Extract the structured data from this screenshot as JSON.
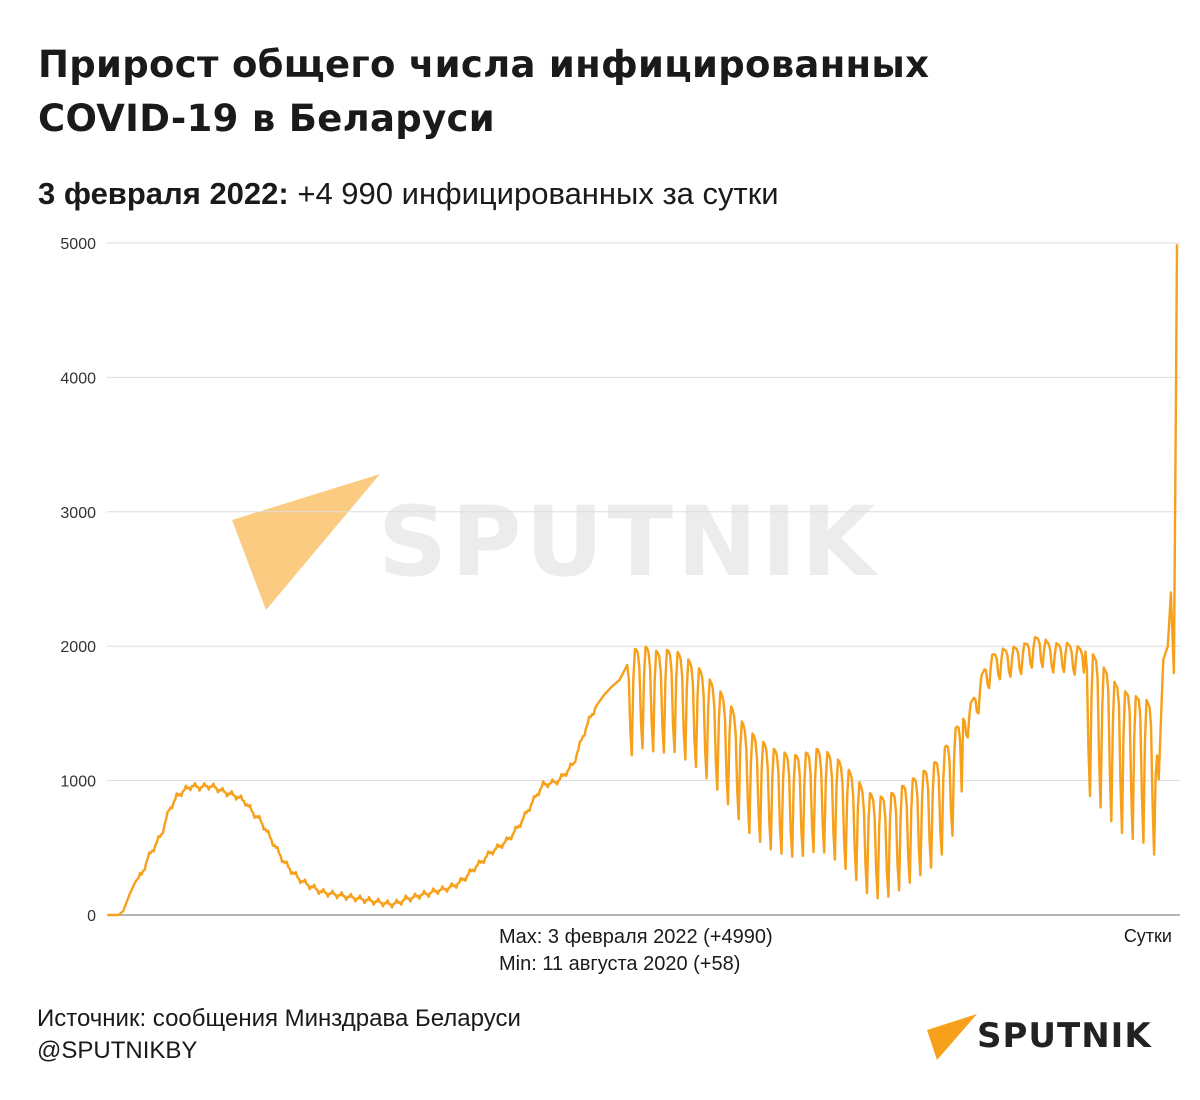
{
  "header": {
    "title_line1": "Прирост общего числа инфицированных",
    "title_line2": "COVID-19 в Беларуси",
    "subtitle_date": "3 февраля 2022:",
    "subtitle_text": " +4 990 инфицированных за сутки"
  },
  "annotation": {
    "max": "Max: 3 февраля 2022 (+4990)",
    "min": "Min: 11 августа 2020 (+58)"
  },
  "x_unit": "Сутки",
  "footer": {
    "source": "Источник: сообщения Минздрава Беларуси",
    "handle": "@SPUTNIKBY"
  },
  "logo": {
    "text": "SPUTNIK",
    "icon": "sputnik-triangle-icon"
  },
  "watermark": {
    "text": "SPUTNIK"
  },
  "colors": {
    "line": "#f7a01b",
    "grid": "#dddddd",
    "axis": "#888888"
  },
  "chart_data": {
    "type": "line",
    "title": "Прирост общего числа инфицированных COVID-19 в Беларуси",
    "xlabel": "Сутки",
    "ylabel": "",
    "ylim": [
      0,
      5000
    ],
    "yticks": [
      0,
      1000,
      2000,
      3000,
      4000,
      5000
    ],
    "grid": true,
    "legend": "none",
    "x_count": 700,
    "keypoints": [
      [
        0,
        0
      ],
      [
        7,
        0
      ],
      [
        10,
        30
      ],
      [
        14,
        150
      ],
      [
        18,
        250
      ],
      [
        22,
        300
      ],
      [
        26,
        420
      ],
      [
        30,
        500
      ],
      [
        35,
        600
      ],
      [
        40,
        780
      ],
      [
        45,
        880
      ],
      [
        50,
        930
      ],
      [
        55,
        960
      ],
      [
        60,
        950
      ],
      [
        65,
        960
      ],
      [
        70,
        950
      ],
      [
        75,
        920
      ],
      [
        80,
        900
      ],
      [
        85,
        880
      ],
      [
        90,
        840
      ],
      [
        95,
        760
      ],
      [
        100,
        700
      ],
      [
        105,
        600
      ],
      [
        110,
        500
      ],
      [
        115,
        400
      ],
      [
        120,
        330
      ],
      [
        125,
        270
      ],
      [
        130,
        230
      ],
      [
        135,
        200
      ],
      [
        140,
        170
      ],
      [
        145,
        160
      ],
      [
        150,
        150
      ],
      [
        155,
        140
      ],
      [
        160,
        130
      ],
      [
        165,
        120
      ],
      [
        170,
        110
      ],
      [
        175,
        100
      ],
      [
        180,
        90
      ],
      [
        185,
        80
      ],
      [
        190,
        90
      ],
      [
        195,
        120
      ],
      [
        200,
        130
      ],
      [
        205,
        150
      ],
      [
        210,
        160
      ],
      [
        215,
        180
      ],
      [
        220,
        190
      ],
      [
        225,
        210
      ],
      [
        230,
        240
      ],
      [
        235,
        290
      ],
      [
        240,
        350
      ],
      [
        245,
        400
      ],
      [
        250,
        460
      ],
      [
        255,
        500
      ],
      [
        260,
        540
      ],
      [
        265,
        600
      ],
      [
        270,
        680
      ],
      [
        275,
        780
      ],
      [
        280,
        880
      ],
      [
        285,
        970
      ],
      [
        290,
        980
      ],
      [
        295,
        1000
      ],
      [
        300,
        1060
      ],
      [
        305,
        1130
      ],
      [
        310,
        1300
      ],
      [
        315,
        1450
      ],
      [
        320,
        1560
      ],
      [
        325,
        1640
      ],
      [
        330,
        1700
      ],
      [
        335,
        1750
      ],
      [
        340,
        1860
      ],
      [
        345,
        1940
      ],
      [
        350,
        1960
      ],
      [
        355,
        1950
      ],
      [
        360,
        1920
      ],
      [
        365,
        1930
      ],
      [
        370,
        1940
      ],
      [
        375,
        1900
      ],
      [
        380,
        1860
      ],
      [
        385,
        1820
      ],
      [
        390,
        1760
      ],
      [
        395,
        1700
      ],
      [
        400,
        1640
      ],
      [
        405,
        1560
      ],
      [
        410,
        1480
      ],
      [
        415,
        1400
      ],
      [
        420,
        1330
      ],
      [
        425,
        1280
      ],
      [
        430,
        1240
      ],
      [
        435,
        1200
      ],
      [
        440,
        1180
      ],
      [
        445,
        1160
      ],
      [
        450,
        1150
      ],
      [
        455,
        1160
      ],
      [
        460,
        1180
      ],
      [
        465,
        1200
      ],
      [
        470,
        1180
      ],
      [
        475,
        1140
      ],
      [
        480,
        1100
      ],
      [
        485,
        1040
      ],
      [
        490,
        980
      ],
      [
        495,
        900
      ],
      [
        500,
        860
      ],
      [
        505,
        840
      ],
      [
        510,
        850
      ],
      [
        515,
        880
      ],
      [
        520,
        920
      ],
      [
        525,
        960
      ],
      [
        530,
        1000
      ],
      [
        535,
        1040
      ],
      [
        540,
        1080
      ],
      [
        545,
        1150
      ],
      [
        550,
        1250
      ],
      [
        555,
        1350
      ],
      [
        560,
        1460
      ],
      [
        565,
        1560
      ],
      [
        570,
        1700
      ],
      [
        575,
        1860
      ],
      [
        580,
        1930
      ],
      [
        585,
        1960
      ],
      [
        590,
        1970
      ],
      [
        595,
        1980
      ],
      [
        600,
        2000
      ],
      [
        605,
        2040
      ],
      [
        610,
        2060
      ],
      [
        615,
        2020
      ],
      [
        620,
        2000
      ],
      [
        625,
        2010
      ],
      [
        630,
        2000
      ],
      [
        635,
        1980
      ],
      [
        640,
        1960
      ],
      [
        645,
        1920
      ],
      [
        650,
        1850
      ],
      [
        655,
        1780
      ],
      [
        660,
        1700
      ],
      [
        665,
        1650
      ],
      [
        670,
        1620
      ],
      [
        675,
        1600
      ],
      [
        680,
        1580
      ],
      [
        685,
        1500
      ],
      [
        688,
        1000
      ],
      [
        691,
        1900
      ],
      [
        694,
        2000
      ],
      [
        696,
        2400
      ],
      [
        698,
        1800
      ],
      [
        700,
        4990
      ]
    ],
    "oscillation": [
      {
        "from": 340,
        "to": 560,
        "pattern": [
          0,
          -120,
          -520,
          -720,
          -180,
          40,
          30
        ],
        "note": "weekly dips"
      },
      {
        "from": 560,
        "to": 640,
        "pattern": [
          0,
          -40,
          -160,
          -200,
          -60,
          20,
          10
        ],
        "note": "small dips"
      },
      {
        "from": 640,
        "to": 690,
        "pattern": [
          0,
          -120,
          -700,
          -1050,
          -300,
          20,
          10
        ],
        "note": "weekly dips"
      }
    ],
    "max_point": {
      "label": "3 февраля 2022",
      "value": 4990
    },
    "min_point": {
      "label": "11 августа 2020",
      "value": 58
    }
  }
}
